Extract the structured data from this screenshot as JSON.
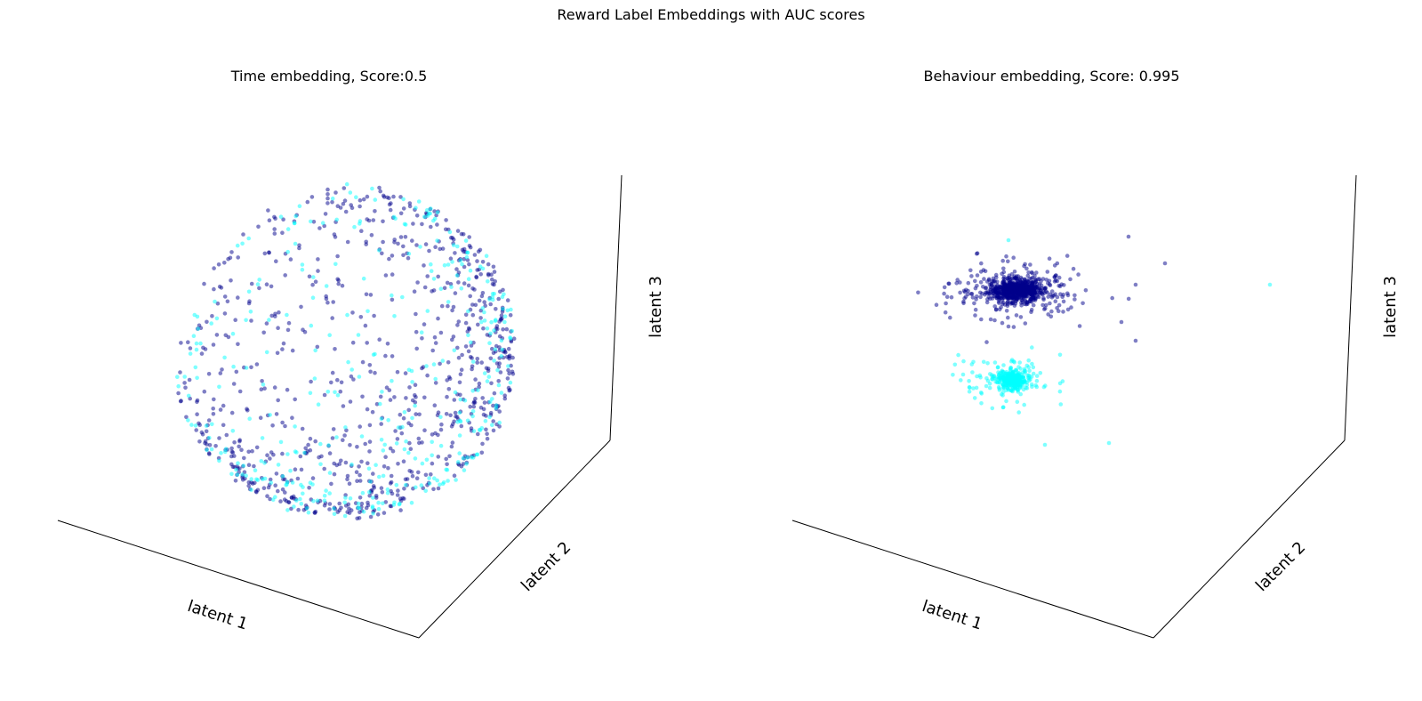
{
  "figure": {
    "suptitle": "Reward Label Embeddings with AUC scores"
  },
  "colors": {
    "class_0": "#00008B",
    "class_1": "#00FFFF"
  },
  "chart_data": [
    {
      "type": "scatter",
      "projection": "3d",
      "title": "Time embedding, Score:0.5",
      "xlabel": "latent 1",
      "ylabel": "latent 2",
      "zlabel": "latent 3",
      "grid": false,
      "legend": "none",
      "point_alpha": 0.5,
      "shape": "spherical shell with open cavity",
      "series": [
        {
          "color": "#00008B",
          "count": 820
        },
        {
          "color": "#00FFFF",
          "count": 360
        }
      ]
    },
    {
      "type": "scatter",
      "projection": "3d",
      "title": "Behaviour embedding, Score: 0.995",
      "xlabel": "latent 1",
      "ylabel": "latent 2",
      "zlabel": "latent 3",
      "grid": false,
      "legend": "none",
      "point_alpha": 0.5,
      "shape": "two separated clusters",
      "series": [
        {
          "color": "#00008B",
          "count": 900
        },
        {
          "color": "#00FFFF",
          "count": 420
        }
      ]
    }
  ]
}
